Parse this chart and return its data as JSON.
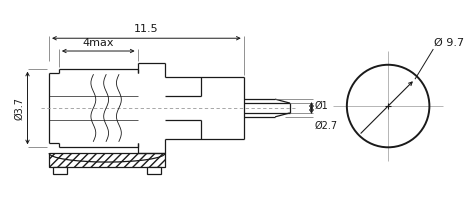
{
  "bg_color": "#ffffff",
  "line_color": "#1a1a1a",
  "dim_color": "#1a1a1a",
  "fig_width": 4.69,
  "fig_height": 2.16,
  "dpi": 100,
  "dim_11_5": "11.5",
  "dim_4max": "4max",
  "dim_3_7": "Ø3.7",
  "dim_1": "Ø1",
  "dim_2_7": "Ø2.7",
  "dim_9_7": "Ø 9.7"
}
